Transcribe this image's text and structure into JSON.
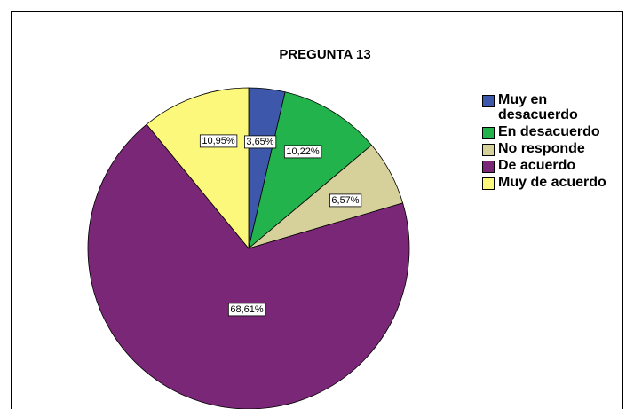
{
  "chart_data": {
    "type": "pie",
    "title": "PREGUNTA 13",
    "categories": [
      "Muy en desacuerdo",
      "En desacuerdo",
      "No responde",
      "De acuerdo",
      "Muy de acuerdo"
    ],
    "values": [
      3.65,
      10.22,
      6.57,
      68.61,
      10.95
    ],
    "value_labels": [
      "3,65%",
      "10,22%",
      "6,57%",
      "68,61%",
      "10,95%"
    ],
    "colors": [
      "#3d57ab",
      "#23b34c",
      "#d6d09b",
      "#7b2778",
      "#fbf87b"
    ]
  }
}
